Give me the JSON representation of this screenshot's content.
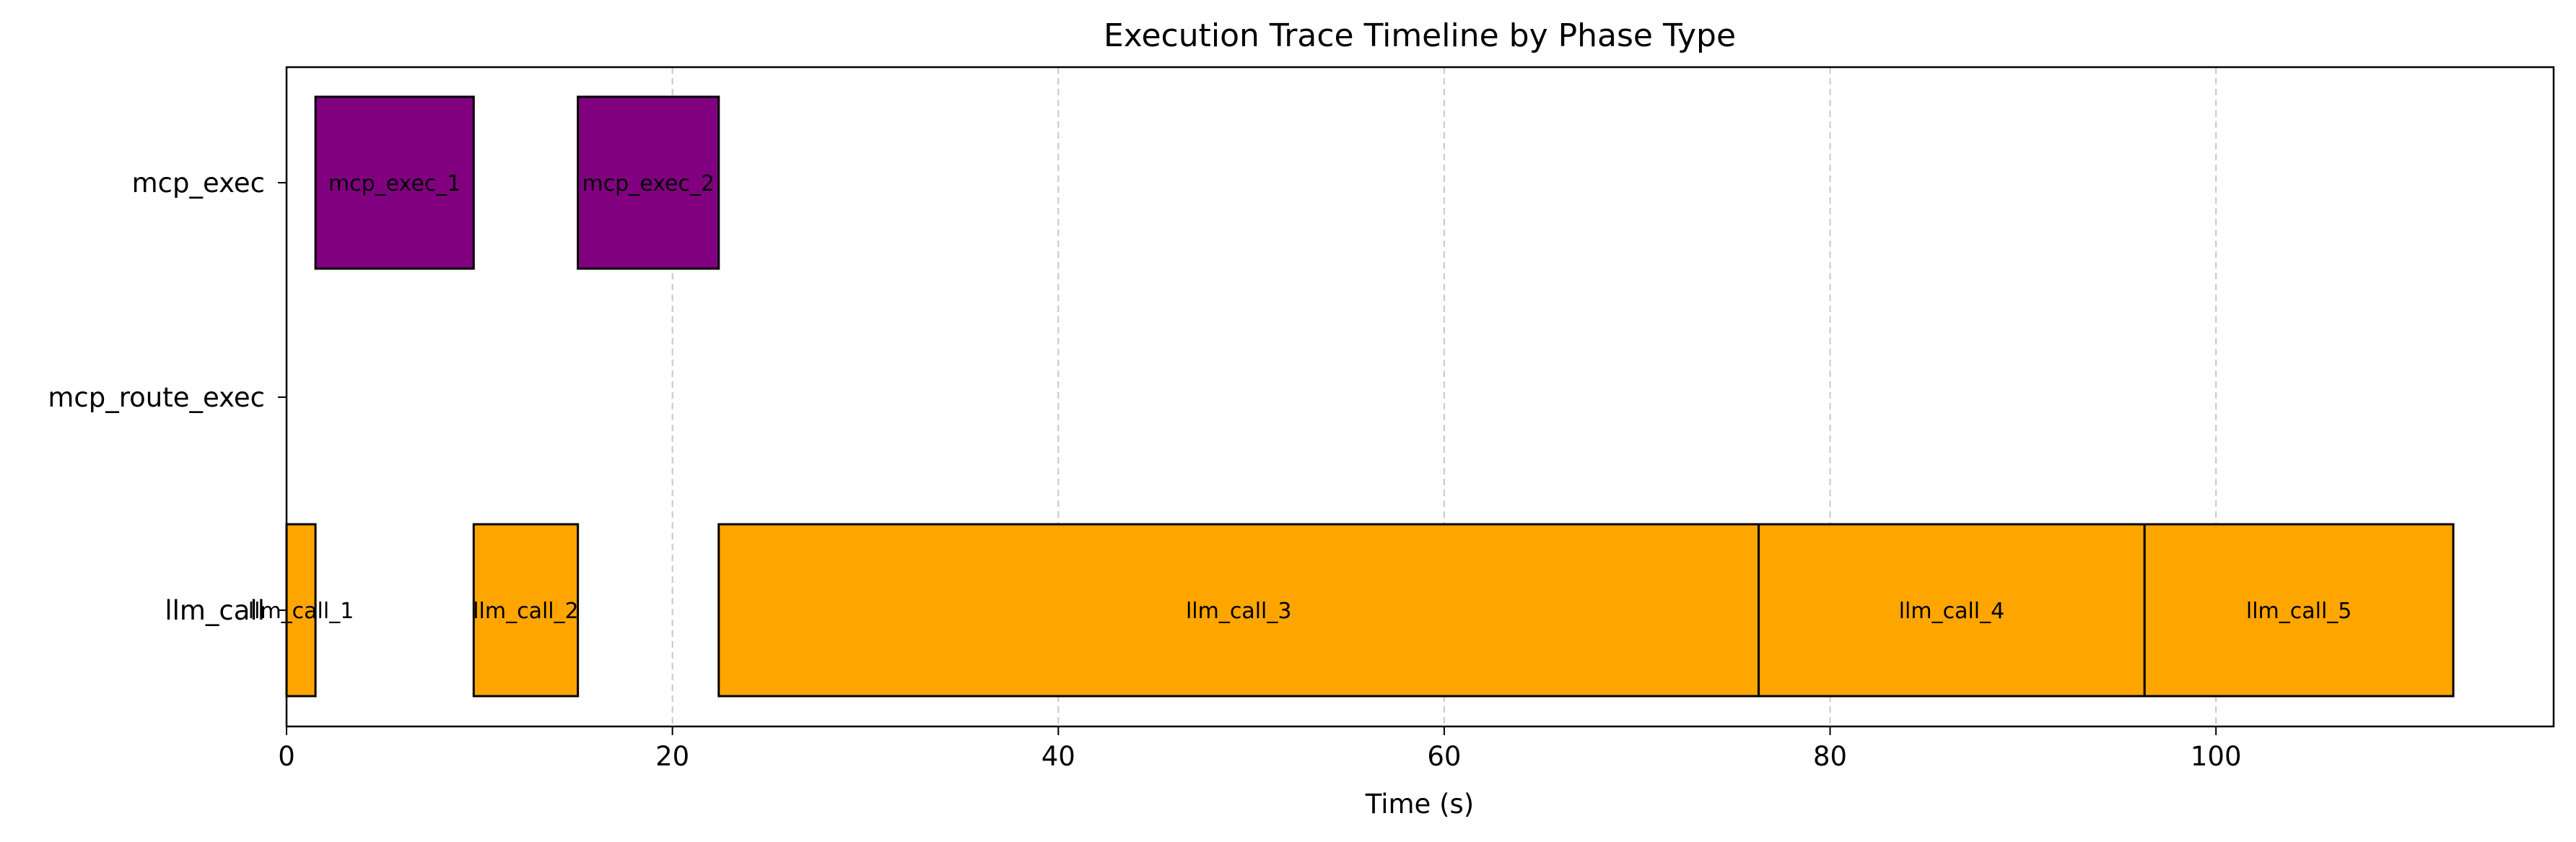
{
  "chart_data": {
    "type": "gantt",
    "title": "Execution Trace Timeline by Phase Type",
    "xlabel": "Time (s)",
    "ylabel": "",
    "xlim": [
      0,
      117.5
    ],
    "xticks": [
      0,
      20,
      40,
      60,
      80,
      100
    ],
    "grid": "x-dashed",
    "rows": [
      "llm_call",
      "mcp_route_exec",
      "mcp_exec"
    ],
    "colors": {
      "llm_call": "#FFA500",
      "mcp_route_exec": "#1f77b4",
      "mcp_exec": "#800080"
    },
    "segments": [
      {
        "label": "llm_call_1",
        "row": "llm_call",
        "start": 0.0,
        "end": 1.5
      },
      {
        "label": "mcp_exec_1",
        "row": "mcp_exec",
        "start": 1.5,
        "end": 9.7
      },
      {
        "label": "llm_call_2",
        "row": "llm_call",
        "start": 9.7,
        "end": 15.1
      },
      {
        "label": "mcp_exec_2",
        "row": "mcp_exec",
        "start": 15.1,
        "end": 22.4
      },
      {
        "label": "llm_call_3",
        "row": "llm_call",
        "start": 22.4,
        "end": 76.3
      },
      {
        "label": "llm_call_4",
        "row": "llm_call",
        "start": 76.3,
        "end": 96.3
      },
      {
        "label": "llm_call_5",
        "row": "llm_call",
        "start": 96.3,
        "end": 112.3
      }
    ]
  }
}
